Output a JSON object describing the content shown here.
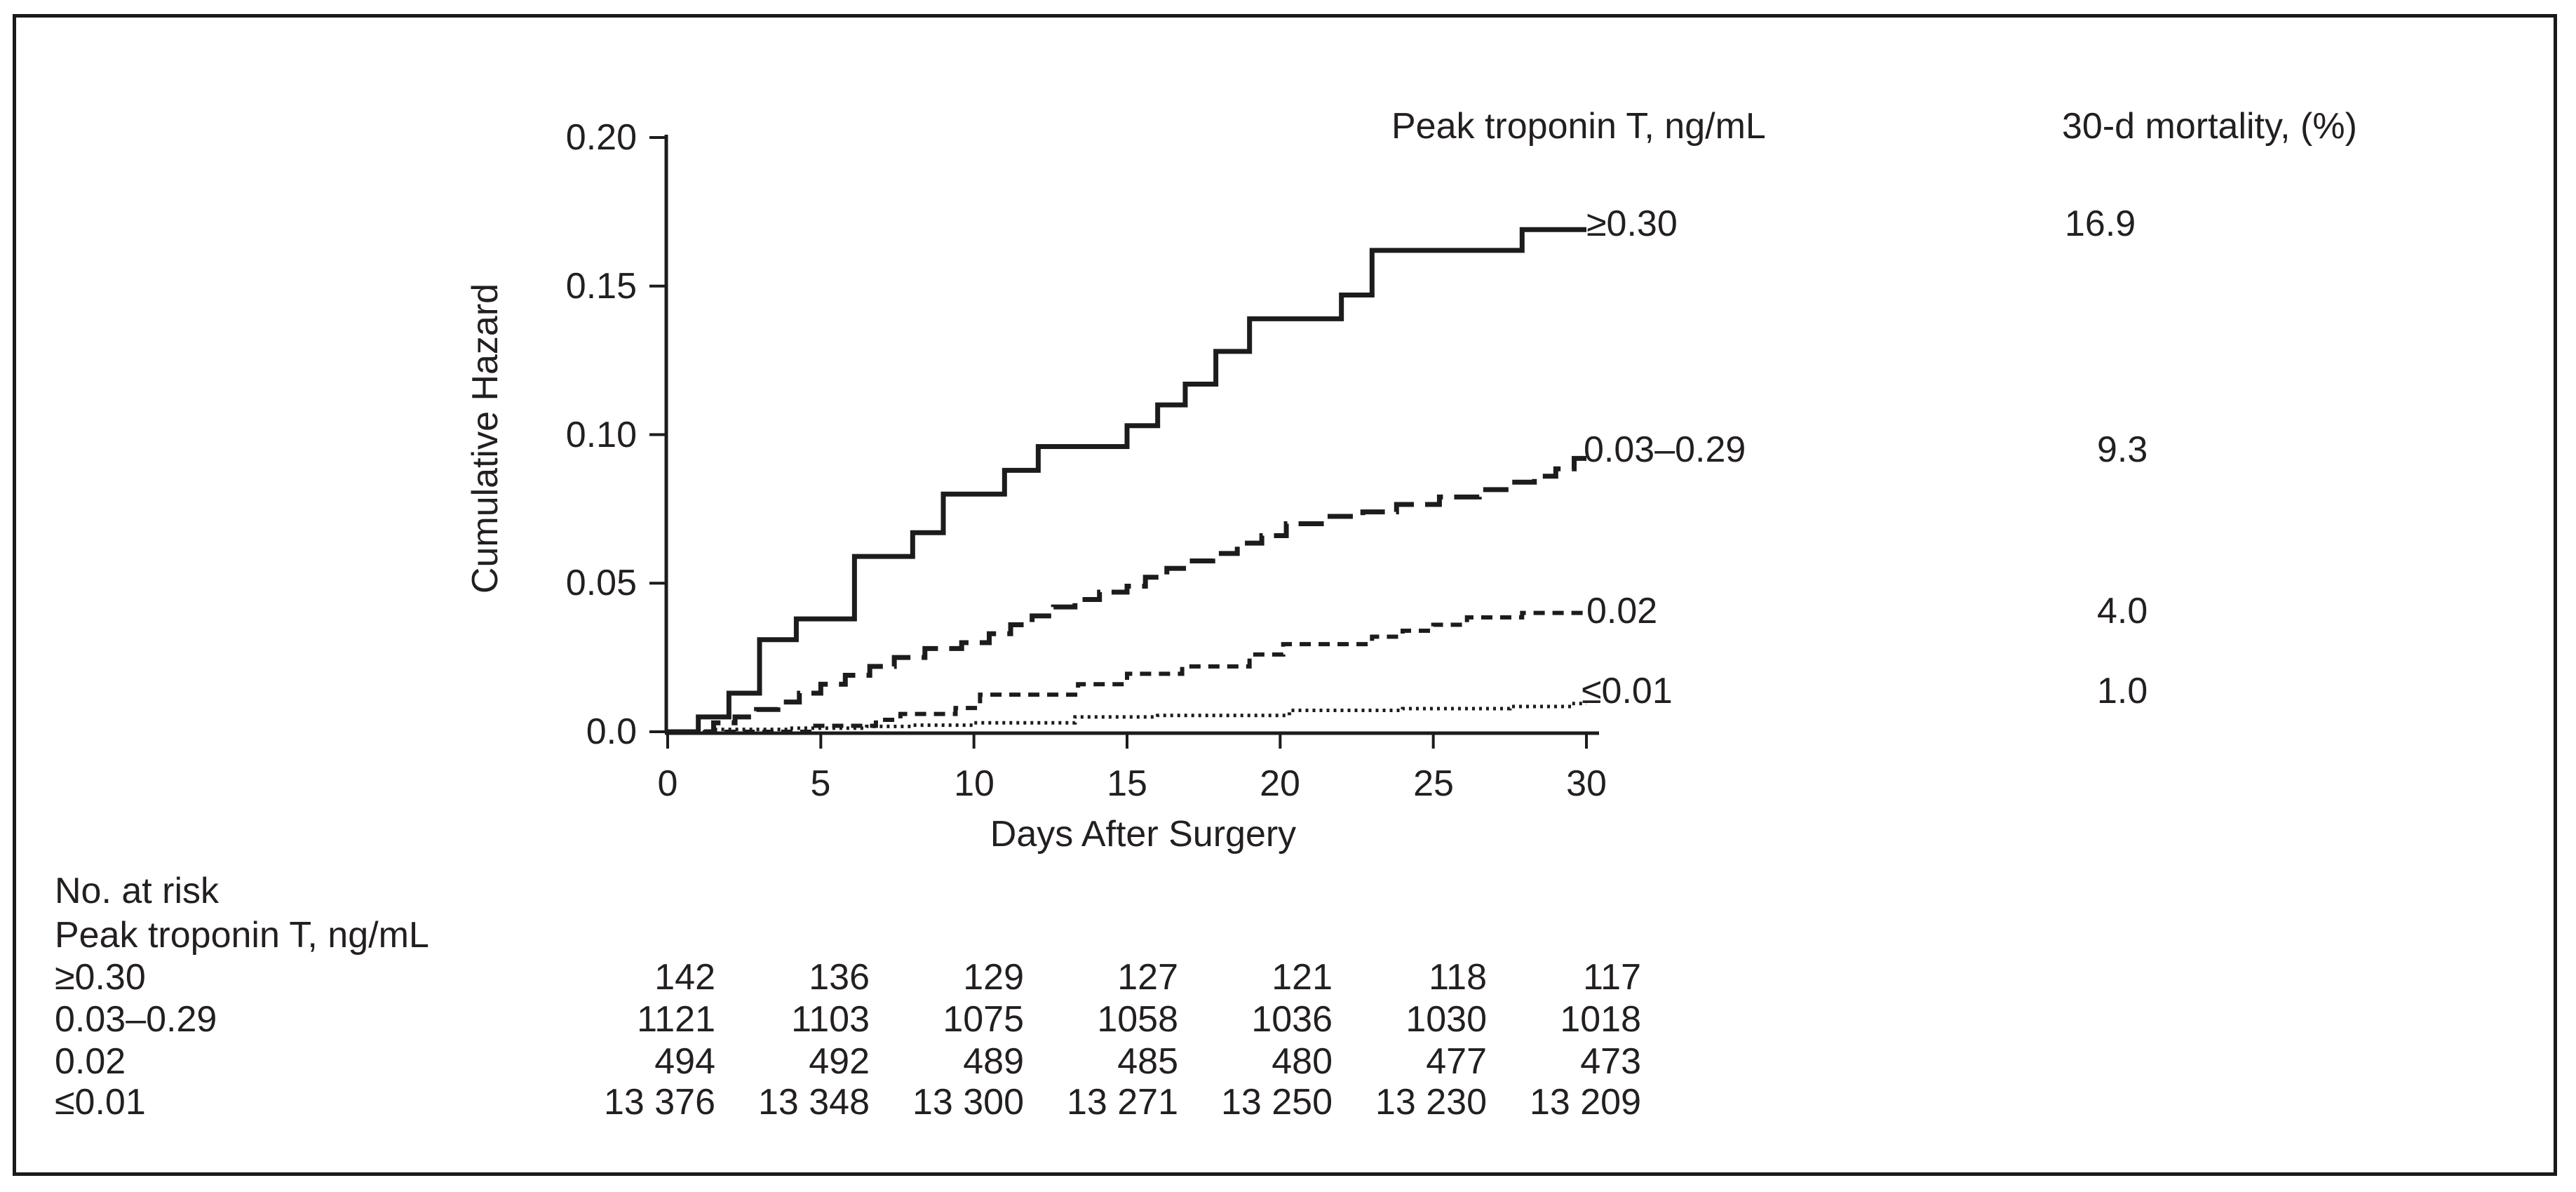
{
  "y_axis": {
    "title": "Cumulative Hazard",
    "ticks": [
      "0.20",
      "0.15",
      "0.10",
      "0.05",
      "0.0"
    ]
  },
  "x_axis": {
    "title": "Days After Surgery",
    "ticks": [
      "0",
      "5",
      "10",
      "15",
      "20",
      "25",
      "30"
    ]
  },
  "legend": {
    "header_troponin": "Peak troponin T, ng/mL",
    "header_mortality": "30-d mortality, (%)",
    "rows": [
      {
        "label": "≥0.30",
        "mortality": "16.9"
      },
      {
        "label": "0.03–0.29",
        "mortality": "9.3"
      },
      {
        "label": "0.02",
        "mortality": "4.0"
      },
      {
        "label": "≤0.01",
        "mortality": "1.0"
      }
    ]
  },
  "risk_table": {
    "title": "No. at risk",
    "subtitle": "Peak troponin T, ng/mL",
    "rows": [
      {
        "label": "≥0.30",
        "counts": [
          "142",
          "136",
          "129",
          "127",
          "121",
          "118",
          "117"
        ]
      },
      {
        "label": "0.03–0.29",
        "counts": [
          "1121",
          "1103",
          "1075",
          "1058",
          "1036",
          "1030",
          "1018"
        ]
      },
      {
        "label": "0.02",
        "counts": [
          "494",
          "492",
          "489",
          "485",
          "480",
          "477",
          "473"
        ]
      },
      {
        "label": "≤0.01",
        "counts": [
          "13 376",
          "13 348",
          "13 300",
          "13 271",
          "13 250",
          "13 230",
          "13 209"
        ]
      }
    ]
  },
  "chart_data": {
    "type": "line",
    "subtype": "step-cumulative-hazard",
    "title": "",
    "xlabel": "Days After Surgery",
    "ylabel": "Cumulative Hazard",
    "xlim": [
      0,
      30
    ],
    "ylim": [
      0,
      0.2
    ],
    "x_ticks": [
      0,
      5,
      10,
      15,
      20,
      25,
      30
    ],
    "y_ticks": [
      0.2,
      0.15,
      0.1,
      0.05,
      0.0
    ],
    "grid": false,
    "legend_position": "right-of-curve-ends",
    "line_color": "#1c1c1c",
    "series": [
      {
        "name": "≥0.30",
        "mortality_30d_pct": 16.9,
        "line_style": "solid",
        "steps": [
          [
            1.0,
            0.005
          ],
          [
            2.0,
            0.013
          ],
          [
            3.0,
            0.031
          ],
          [
            4.2,
            0.038
          ],
          [
            6.1,
            0.059
          ],
          [
            8.0,
            0.067
          ],
          [
            9.0,
            0.08
          ],
          [
            11.0,
            0.088
          ],
          [
            12.1,
            0.096
          ],
          [
            15.0,
            0.103
          ],
          [
            16.0,
            0.11
          ],
          [
            16.9,
            0.117
          ],
          [
            17.9,
            0.128
          ],
          [
            19.0,
            0.139
          ],
          [
            22.0,
            0.147
          ],
          [
            23.0,
            0.162
          ],
          [
            27.9,
            0.169
          ]
        ]
      },
      {
        "name": "0.03–0.29",
        "mortality_30d_pct": 9.3,
        "line_style": "long-dash",
        "steps": [
          [
            1.5,
            0.003
          ],
          [
            2.2,
            0.005
          ],
          [
            2.9,
            0.0075
          ],
          [
            3.6,
            0.01
          ],
          [
            4.3,
            0.013
          ],
          [
            5.0,
            0.016
          ],
          [
            5.8,
            0.019
          ],
          [
            6.6,
            0.022
          ],
          [
            7.4,
            0.025
          ],
          [
            8.4,
            0.028
          ],
          [
            9.6,
            0.03
          ],
          [
            10.5,
            0.033
          ],
          [
            11.2,
            0.036
          ],
          [
            11.9,
            0.039
          ],
          [
            12.6,
            0.042
          ],
          [
            13.3,
            0.0445
          ],
          [
            14.1,
            0.047
          ],
          [
            15.0,
            0.049
          ],
          [
            15.6,
            0.052
          ],
          [
            16.3,
            0.055
          ],
          [
            17.0,
            0.0575
          ],
          [
            17.8,
            0.06
          ],
          [
            18.6,
            0.0635
          ],
          [
            19.4,
            0.066
          ],
          [
            20.2,
            0.07
          ],
          [
            21.5,
            0.0725
          ],
          [
            22.7,
            0.074
          ],
          [
            23.8,
            0.0765
          ],
          [
            25.2,
            0.079
          ],
          [
            26.5,
            0.0815
          ],
          [
            27.5,
            0.084
          ],
          [
            28.3,
            0.086
          ],
          [
            29.0,
            0.0885
          ],
          [
            29.6,
            0.092
          ]
        ]
      },
      {
        "name": "0.02",
        "mortality_30d_pct": 4.0,
        "line_style": "dash",
        "steps": [
          [
            4.7,
            0.002
          ],
          [
            6.8,
            0.004
          ],
          [
            7.6,
            0.006
          ],
          [
            9.4,
            0.008
          ],
          [
            10.2,
            0.0125
          ],
          [
            13.4,
            0.016
          ],
          [
            15.0,
            0.0195
          ],
          [
            16.8,
            0.022
          ],
          [
            19.0,
            0.026
          ],
          [
            20.1,
            0.0295
          ],
          [
            23.0,
            0.032
          ],
          [
            24.0,
            0.034
          ],
          [
            25.0,
            0.036
          ],
          [
            26.1,
            0.0385
          ],
          [
            27.9,
            0.04
          ]
        ]
      },
      {
        "name": "≤0.01",
        "mortality_30d_pct": 1.0,
        "line_style": "dotted",
        "steps": [
          [
            1.5,
            0.0008
          ],
          [
            4.0,
            0.0012
          ],
          [
            6.5,
            0.0018
          ],
          [
            8.0,
            0.0022
          ],
          [
            10.0,
            0.003
          ],
          [
            13.3,
            0.005
          ],
          [
            16.0,
            0.0055
          ],
          [
            20.3,
            0.0072
          ],
          [
            24.0,
            0.0078
          ],
          [
            27.5,
            0.0085
          ],
          [
            29.5,
            0.0095
          ]
        ]
      }
    ]
  }
}
